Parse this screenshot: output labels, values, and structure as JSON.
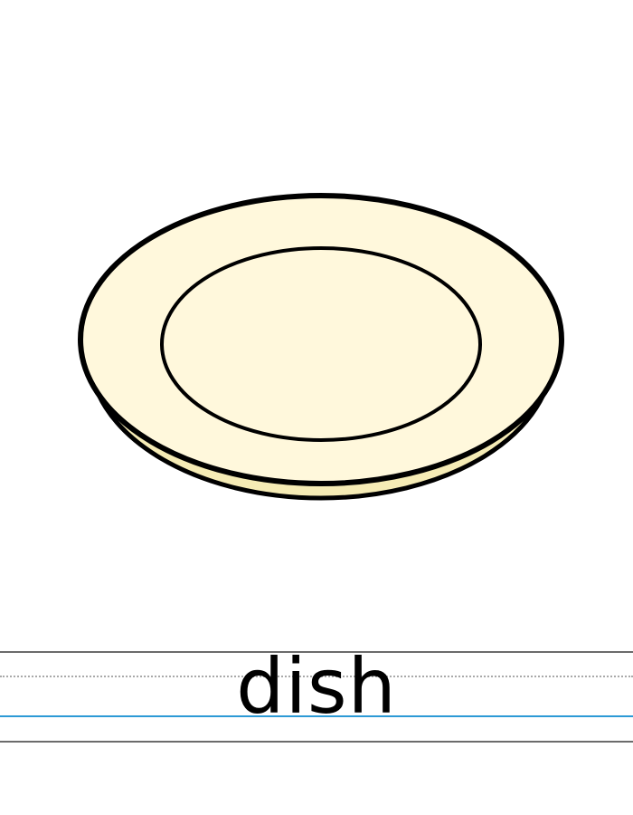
{
  "illustration": {
    "subject_icon": "plate-icon",
    "colors": {
      "plate_fill": "#FFF8DC",
      "plate_rim_shadow": "#F5EBB5",
      "outline": "#000000"
    }
  },
  "writing_area": {
    "word": "dish",
    "colors": {
      "guide_solid": "#6B6B6B",
      "guide_dotted": "#A9A9A9",
      "baseline": "#2D9AD6"
    }
  }
}
